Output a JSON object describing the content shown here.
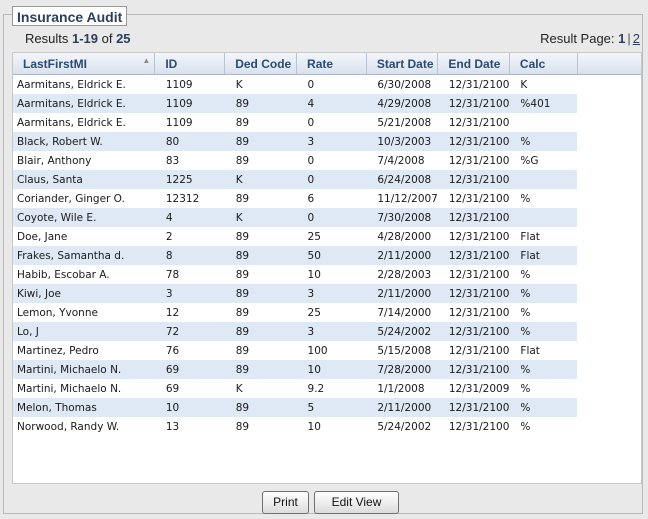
{
  "title": "Insurance Audit",
  "results": {
    "prefix": "Results ",
    "range": "1-19",
    "of": " of ",
    "total": "25"
  },
  "pager": {
    "label": "Result Page: ",
    "current": "1",
    "separator": "|",
    "next": "2"
  },
  "columns": [
    "LastFirstMI",
    "ID",
    "Ded Code",
    "Rate",
    "Start Date",
    "End Date",
    "Calc"
  ],
  "sort_indicator": "▲",
  "rows": [
    [
      "Aarmitans, Eldrick E.",
      "1109",
      "K",
      "0",
      "6/30/2008",
      "12/31/2100",
      "K"
    ],
    [
      "Aarmitans, Eldrick E.",
      "1109",
      "89",
      "4",
      "4/29/2008",
      "12/31/2100",
      "%401"
    ],
    [
      "Aarmitans, Eldrick E.",
      "1109",
      "89",
      "0",
      "5/21/2008",
      "12/31/2100",
      ""
    ],
    [
      "Black, Robert W.",
      "80",
      "89",
      "3",
      "10/3/2003",
      "12/31/2100",
      "%"
    ],
    [
      "Blair, Anthony",
      "83",
      "89",
      "0",
      "7/4/2008",
      "12/31/2100",
      "%G"
    ],
    [
      "Claus, Santa",
      "1225",
      "K",
      "0",
      "6/24/2008",
      "12/31/2100",
      ""
    ],
    [
      "Coriander, Ginger O.",
      "12312",
      "89",
      "6",
      "11/12/2007",
      "12/31/2100",
      "%"
    ],
    [
      "Coyote, Wile E.",
      "4",
      "K",
      "0",
      "7/30/2008",
      "12/31/2100",
      ""
    ],
    [
      "Doe, Jane",
      "2",
      "89",
      "25",
      "4/28/2000",
      "12/31/2100",
      "Flat"
    ],
    [
      "Frakes, Samantha d.",
      "8",
      "89",
      "50",
      "2/11/2000",
      "12/31/2100",
      "Flat"
    ],
    [
      "Habib, Escobar A.",
      "78",
      "89",
      "10",
      "2/28/2003",
      "12/31/2100",
      "%"
    ],
    [
      "Kiwi, Joe",
      "3",
      "89",
      "3",
      "2/11/2000",
      "12/31/2100",
      "%"
    ],
    [
      "Lemon, Yvonne",
      "12",
      "89",
      "25",
      "7/14/2000",
      "12/31/2100",
      "%"
    ],
    [
      "Lo, J",
      "72",
      "89",
      "3",
      "5/24/2002",
      "12/31/2100",
      "%"
    ],
    [
      "Martinez, Pedro",
      "76",
      "89",
      "100",
      "5/15/2008",
      "12/31/2100",
      "Flat"
    ],
    [
      "Martini, Michaelo N.",
      "69",
      "89",
      "10",
      "7/28/2000",
      "12/31/2100",
      "%"
    ],
    [
      "Martini, Michaelo N.",
      "69",
      "K",
      "9.2",
      "1/1/2008",
      "12/31/2009",
      "%"
    ],
    [
      "Melon, Thomas",
      "10",
      "89",
      "5",
      "2/11/2000",
      "12/31/2100",
      "%"
    ],
    [
      "Norwood, Randy W.",
      "13",
      "89",
      "10",
      "5/24/2002",
      "12/31/2100",
      "%"
    ]
  ],
  "buttons": {
    "print": "Print",
    "edit_view": "Edit View"
  }
}
